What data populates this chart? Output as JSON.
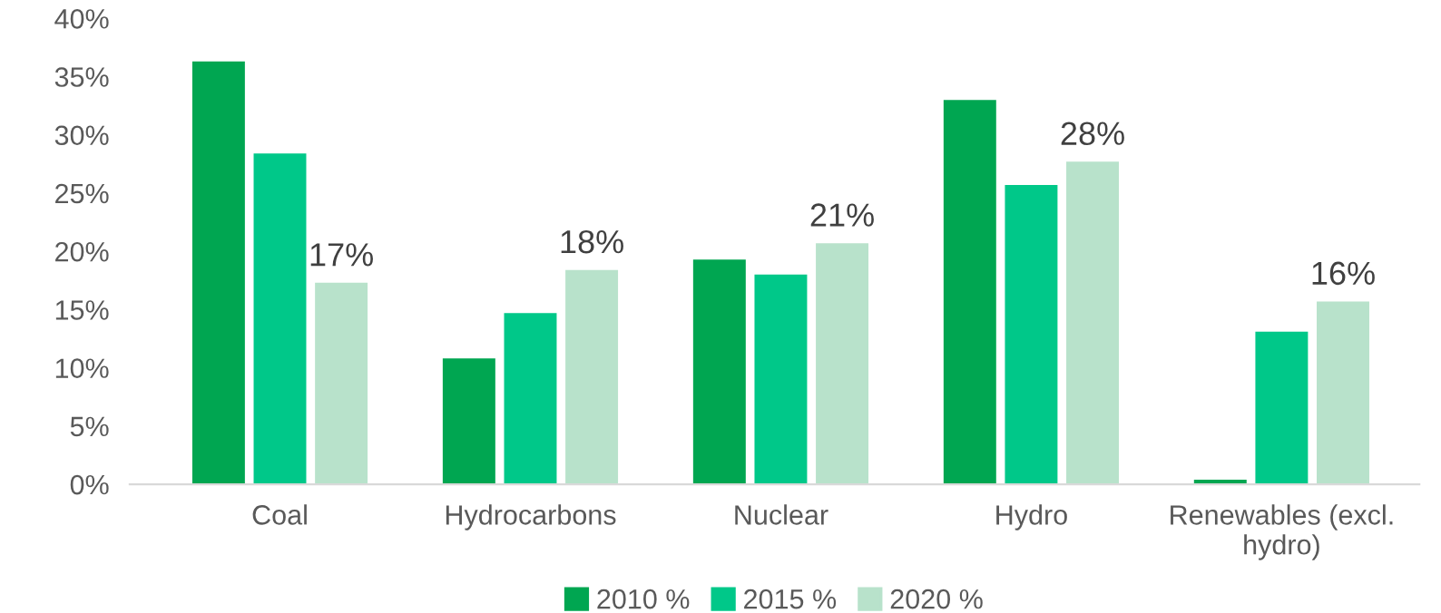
{
  "chart_data": {
    "type": "bar",
    "categories": [
      "Coal",
      "Hydrocarbons",
      "Nuclear",
      "Hydro",
      "Renewables (excl.\nhydro)"
    ],
    "series": [
      {
        "name": "2010 %",
        "color": "#00a651",
        "values": [
          36.3,
          10.8,
          19.3,
          33.0,
          0.4
        ]
      },
      {
        "name": "2015 %",
        "color": "#00c889",
        "values": [
          28.4,
          14.7,
          18.0,
          25.7,
          13.1
        ]
      },
      {
        "name": "2020 %",
        "color": "#b8e2cb",
        "values": [
          17.3,
          18.4,
          20.7,
          27.7,
          15.7
        ],
        "value_labels": [
          "17%",
          "18%",
          "21%",
          "28%",
          "16%"
        ]
      }
    ],
    "ylim": [
      0,
      40
    ],
    "yticks": [
      {
        "value": 0,
        "label": "0%"
      },
      {
        "value": 5,
        "label": "5%"
      },
      {
        "value": 10,
        "label": "10%"
      },
      {
        "value": 15,
        "label": "15%"
      },
      {
        "value": 20,
        "label": "20%"
      },
      {
        "value": 25,
        "label": "25%"
      },
      {
        "value": 30,
        "label": "30%"
      },
      {
        "value": 35,
        "label": "35%"
      },
      {
        "value": 40,
        "label": "40%"
      }
    ],
    "grid": false,
    "legend": "bottom"
  }
}
